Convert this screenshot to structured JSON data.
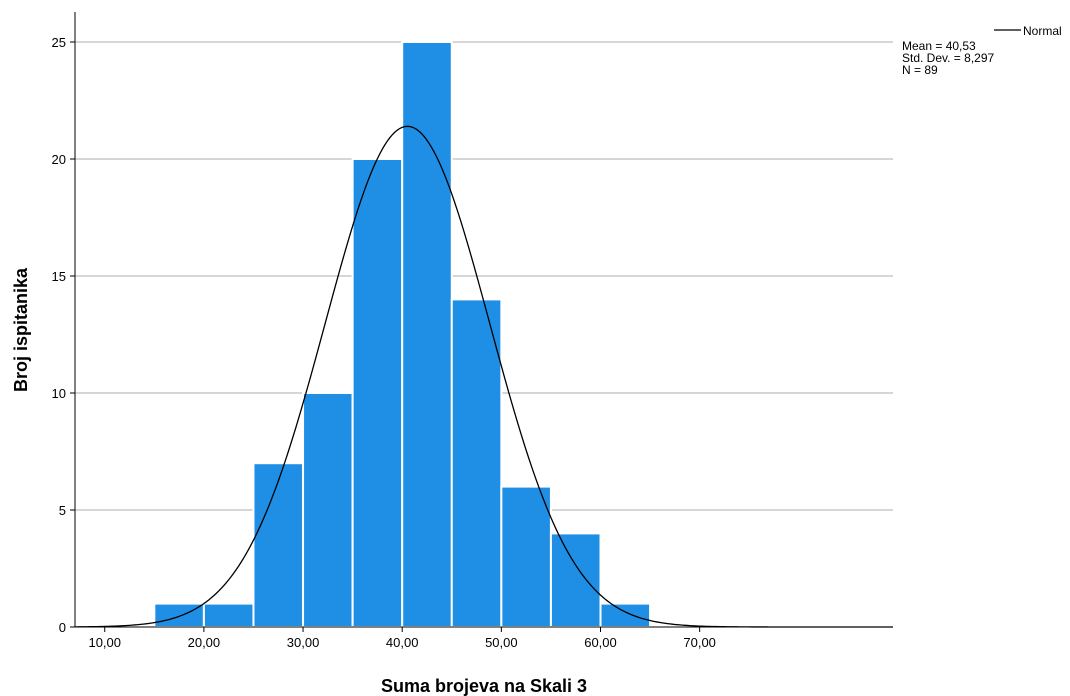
{
  "chart_data": {
    "type": "bar",
    "subtype": "histogram",
    "xlabel": "Suma brojeva na Skali 3",
    "ylabel": "Broj ispitanika",
    "xlim": [
      7,
      89.5
    ],
    "ylim": [
      0,
      26
    ],
    "x_ticks": [
      10,
      20,
      30,
      40,
      50,
      60,
      70
    ],
    "x_tick_labels": [
      "10,00",
      "20,00",
      "30,00",
      "40,00",
      "50,00",
      "60,00",
      "70,00"
    ],
    "y_ticks": [
      0,
      5,
      10,
      15,
      20,
      25
    ],
    "y_tick_labels": [
      "0",
      "5",
      "10",
      "15",
      "20",
      "25"
    ],
    "bin_width": 5,
    "bins": [
      {
        "start": 15,
        "end": 20,
        "count": 1
      },
      {
        "start": 20,
        "end": 25,
        "count": 1
      },
      {
        "start": 25,
        "end": 30,
        "count": 7
      },
      {
        "start": 30,
        "end": 35,
        "count": 10
      },
      {
        "start": 35,
        "end": 40,
        "count": 20
      },
      {
        "start": 40,
        "end": 45,
        "count": 25
      },
      {
        "start": 45,
        "end": 50,
        "count": 14
      },
      {
        "start": 50,
        "end": 55,
        "count": 6
      },
      {
        "start": 55,
        "end": 60,
        "count": 4
      },
      {
        "start": 60,
        "end": 65,
        "count": 1
      }
    ],
    "normal_curve": {
      "mean": 40.53,
      "std_dev": 8.297,
      "n": 89,
      "bin_width": 5
    },
    "grid": {
      "horizontal": true,
      "vertical": false
    },
    "legend": {
      "position": "top-right",
      "series_label": "Normal",
      "stats": [
        "Mean = 40,53",
        "Std. Dev. = 8,297",
        "N = 89"
      ]
    },
    "colors": {
      "bar_fill": "#1f8fe5",
      "bar_edge": "#ffffff",
      "curve": "#000000",
      "grid": "#c8c8c8",
      "axis": "#000000"
    }
  }
}
